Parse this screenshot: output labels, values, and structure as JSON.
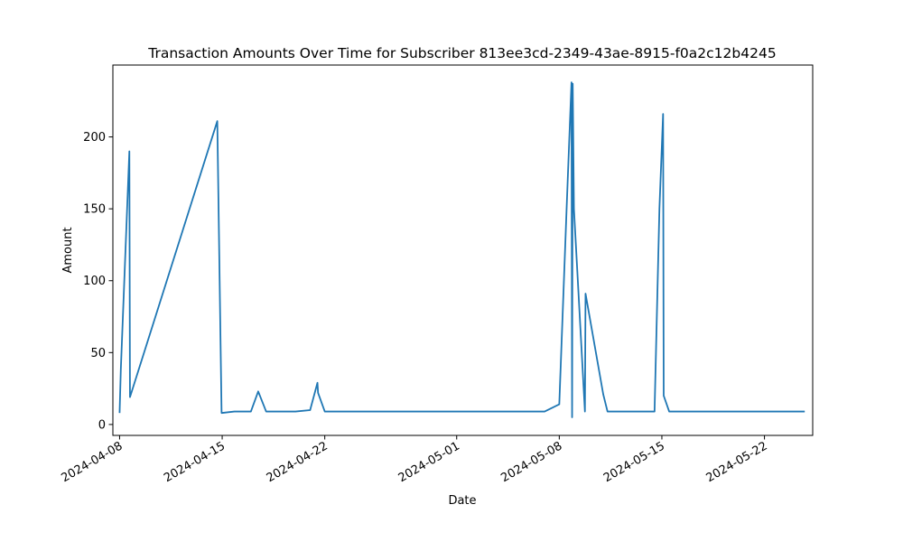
{
  "chart_data": {
    "type": "line",
    "title": "Transaction Amounts Over Time for Subscriber 813ee3cd-2349-43ae-8915-f0a2c12b4245",
    "xlabel": "Date",
    "ylabel": "Amount",
    "x_axis_type": "date",
    "xlim": [
      "2024-04-07T13:00",
      "2024-05-25T07:00"
    ],
    "ylim": [
      -7.6,
      250
    ],
    "x_ticks": [
      "2024-04-08",
      "2024-04-15",
      "2024-04-22",
      "2024-05-01",
      "2024-05-08",
      "2024-05-15",
      "2024-05-22"
    ],
    "y_ticks": [
      0,
      50,
      100,
      150,
      200
    ],
    "grid": false,
    "legend": "none",
    "series": [
      {
        "color": "#1f77b4",
        "points": [
          {
            "x": "2024-04-08T00:00",
            "y": 8
          },
          {
            "x": "2024-04-08T02:00",
            "y": 38
          },
          {
            "x": "2024-04-08T16:00",
            "y": 190
          },
          {
            "x": "2024-04-08T17:00",
            "y": 19
          },
          {
            "x": "2024-04-14T16:00",
            "y": 211
          },
          {
            "x": "2024-04-14T23:00",
            "y": 8
          },
          {
            "x": "2024-04-15T20:00",
            "y": 9
          },
          {
            "x": "2024-04-16T23:00",
            "y": 9
          },
          {
            "x": "2024-04-17T11:00",
            "y": 23
          },
          {
            "x": "2024-04-18T00:00",
            "y": 9
          },
          {
            "x": "2024-04-20T00:00",
            "y": 9
          },
          {
            "x": "2024-04-21T00:00",
            "y": 10
          },
          {
            "x": "2024-04-21T12:00",
            "y": 29
          },
          {
            "x": "2024-04-21T13:00",
            "y": 22
          },
          {
            "x": "2024-04-22T00:00",
            "y": 9
          },
          {
            "x": "2024-05-07T00:00",
            "y": 9
          },
          {
            "x": "2024-05-08T00:00",
            "y": 14
          },
          {
            "x": "2024-05-08T12:00",
            "y": 150
          },
          {
            "x": "2024-05-08T20:00",
            "y": 238
          },
          {
            "x": "2024-05-08T21:00",
            "y": 5
          },
          {
            "x": "2024-05-08T22:00",
            "y": 237
          },
          {
            "x": "2024-05-09T00:00",
            "y": 150
          },
          {
            "x": "2024-05-09T18:00",
            "y": 9
          },
          {
            "x": "2024-05-09T19:00",
            "y": 91
          },
          {
            "x": "2024-05-11T00:00",
            "y": 21
          },
          {
            "x": "2024-05-11T07:00",
            "y": 9
          },
          {
            "x": "2024-05-14T12:00",
            "y": 9
          },
          {
            "x": "2024-05-14T20:00",
            "y": 150
          },
          {
            "x": "2024-05-15T02:00",
            "y": 216
          },
          {
            "x": "2024-05-15T03:00",
            "y": 20
          },
          {
            "x": "2024-05-15T12:00",
            "y": 9
          },
          {
            "x": "2024-05-24T18:00",
            "y": 9
          }
        ]
      }
    ]
  }
}
